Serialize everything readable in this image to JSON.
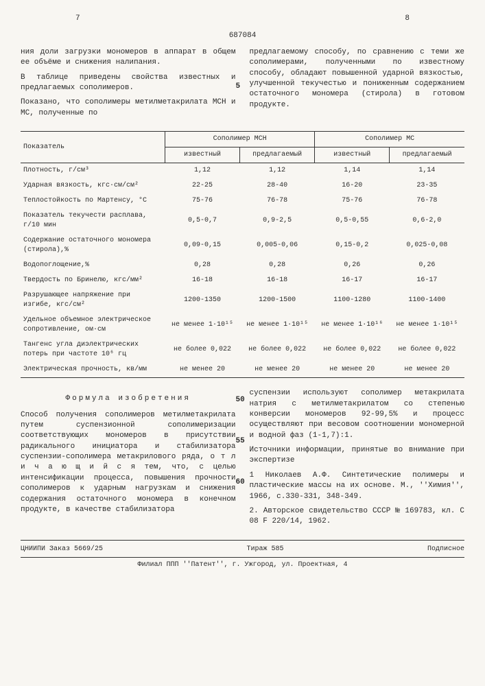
{
  "patentNumber": "687084",
  "pageLeft": "7",
  "pageRight": "8",
  "lineNum1": "5",
  "lineNum50": "50",
  "lineNum55": "55",
  "lineNum60": "60",
  "topText": {
    "left": [
      "ния доли загрузки мономеров в аппарат в общем ее объёме и снижения налипания.",
      "В таблице приведены свойства известных и предлагаемых сополимеров.",
      "Показано, что сополимеры метилметакрилата МСН и МС, полученные по"
    ],
    "right": [
      "предлагаемому способу, по сравнению с теми же сополимерами, полученными по известному способу, обладают повышенной ударной вязкостью, улучшенной текучестью и пониженным содержанием остаточного мономера (стирола) в готовом продукте."
    ]
  },
  "table": {
    "headerLabel": "Показатель",
    "groupMCH": "Сополимер МСН",
    "groupMC": "Сополимер МС",
    "colKnown": "известный",
    "colProposed": "предлагаемый",
    "rows": [
      {
        "label": "Плотность, г/см³",
        "a": "1,12",
        "b": "1,12",
        "c": "1,14",
        "d": "1,14"
      },
      {
        "label": "Ударная вязкость, кгс·см/см²",
        "a": "22-25",
        "b": "28-40",
        "c": "16-20",
        "d": "23-35"
      },
      {
        "label": "Теплостойкость по Мартенсу, °С",
        "a": "75-76",
        "b": "76-78",
        "c": "75-76",
        "d": "76-78"
      },
      {
        "label": "Показатель текучести расплава, г/10 мин",
        "a": "0,5-0,7",
        "b": "0,9-2,5",
        "c": "0,5-0,55",
        "d": "0,6-2,0"
      },
      {
        "label": "Содержание остаточного мономера (стирола),%",
        "a": "0,09-0,15",
        "b": "0,005-0,06",
        "c": "0,15-0,2",
        "d": "0,025-0,08"
      },
      {
        "label": "Водопоглощение,%",
        "a": "0,28",
        "b": "0,28",
        "c": "0,26",
        "d": "0,26"
      },
      {
        "label": "Твердость по Бринелю, кгс/мм²",
        "a": "16-18",
        "b": "16-18",
        "c": "16-17",
        "d": "16-17"
      },
      {
        "label": "Разрушающее напряжение при изгибе, кгс/см²",
        "a": "1200-1350",
        "b": "1200-1500",
        "c": "1100-1280",
        "d": "1100-1400"
      },
      {
        "label": "Удельное объемное электрическое сопротивление, ом·см",
        "a": "не менее 1·10¹⁵",
        "b": "не менее 1·10¹⁵",
        "c": "не менее 1·10¹⁶",
        "d": "не менее 1·10¹⁵"
      },
      {
        "label": "Тангенс угла диэлектрических потерь при частоте 10⁶ гц",
        "a": "не более 0,022",
        "b": "не более 0,022",
        "c": "не более 0,022",
        "d": "не более 0,022"
      },
      {
        "label": "Электрическая прочность, кв/мм",
        "a": "не менее 20",
        "b": "не менее 20",
        "c": "не менее 20",
        "d": "не менее 20"
      }
    ]
  },
  "formulaTitle": "Формула изобретения",
  "bottomText": {
    "left": [
      "Способ получения сополимеров метилметакрилата путем суспензионной сополимеризации соответствующих мономеров в присутствии радикального инициатора и стабилизатора суспензии-сополимера метакрилового ряда, о т л и ч а ю щ и й с я тем, что, с целью интенсификации процесса, повышения прочности сополимеров к ударным нагрузкам и снижения содержания остаточного мономера в конечном продукте, в качестве стабилизатора"
    ],
    "right": [
      "суспензии используют сополимер метакрилата натрия с метилметакрилатом со степенью конверсии мономеров 92-99,5% и процесс осуществляют при весовом соотношении мономерной и водной фаз (1-1,7):1.",
      "Источники информации, принятые во внимание при экспертизе",
      "1 Николаев А.Ф. Синтетические полимеры и пластические массы на их основе. М., ''Химия'', 1966, с.330-331, 348-349.",
      "2. Авторское свидетельство СССР № 169783, кл. С 08 F 220/14, 1962."
    ]
  },
  "footer": {
    "order": "ЦНИИПИ Заказ 5669/25",
    "tirage": "Тираж 585",
    "subscription": "Подписное",
    "address": "Филиал ППП ''Патент'', г. Ужгород, ул. Проектная, 4"
  }
}
